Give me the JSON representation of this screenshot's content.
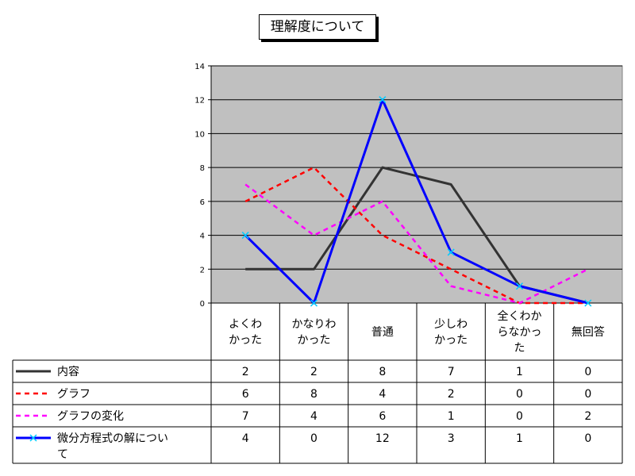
{
  "chart_data": {
    "type": "line",
    "title": "理解度について",
    "categories": [
      [
        "よくわ",
        "かった"
      ],
      [
        "かなりわ",
        "かった"
      ],
      [
        "普通"
      ],
      [
        "少しわ",
        "かった"
      ],
      [
        "全くわか",
        "らなかっ",
        "た"
      ],
      [
        "無回答"
      ]
    ],
    "ylim": [
      0,
      14
    ],
    "yticks": [
      0,
      2,
      4,
      6,
      8,
      10,
      12,
      14
    ],
    "grid": true,
    "legend": "data-table",
    "series": [
      {
        "name": "内容",
        "label_lines": [
          "内容"
        ],
        "values": [
          2,
          2,
          8,
          7,
          1,
          0
        ],
        "color": "#333333",
        "dash": "solid",
        "marker": "none"
      },
      {
        "name": "グラフ",
        "label_lines": [
          "グラフ"
        ],
        "values": [
          6,
          8,
          4,
          2,
          0,
          0
        ],
        "color": "#ff0000",
        "dash": "dashed",
        "marker": "none"
      },
      {
        "name": "グラフの変化",
        "label_lines": [
          "グラフの変化"
        ],
        "values": [
          7,
          4,
          6,
          1,
          0,
          2
        ],
        "color": "#ff00ff",
        "dash": "dashed",
        "marker": "none"
      },
      {
        "name": "微分方程式の解について",
        "label_lines": [
          "微分方程式の解につい",
          "て"
        ],
        "values": [
          4,
          0,
          12,
          3,
          1,
          0
        ],
        "color": "#0000ff",
        "dash": "solid",
        "marker": "x"
      }
    ],
    "colors": {
      "plot_background": "#c0c0c0",
      "marker": "#00ccff"
    }
  }
}
